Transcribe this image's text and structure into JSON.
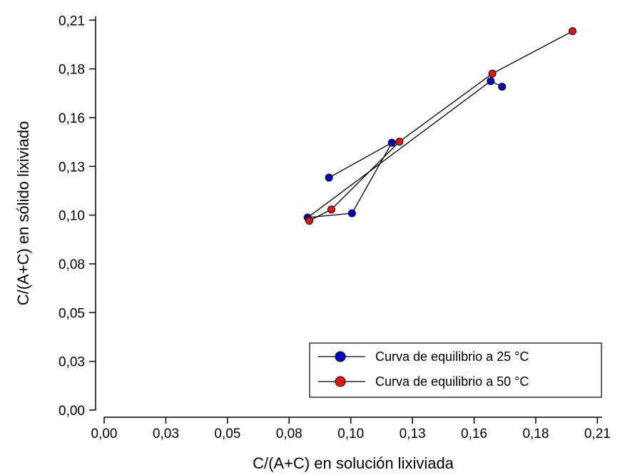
{
  "chart_data": {
    "type": "line",
    "xlabel": "C/(A+C) en solución lixiviada",
    "ylabel": "C/(A+C) en sólido lixiviado",
    "xlim": [
      0,
      0.21
    ],
    "ylim": [
      0,
      0.21
    ],
    "x_ticks": [
      0.0,
      0.026,
      0.052,
      0.078,
      0.104,
      0.13,
      0.156,
      0.182,
      0.208
    ],
    "x_tick_labels": [
      "0,00",
      "0,03",
      "0,05",
      "0,08",
      "0,10",
      "0,13",
      "0,16",
      "0,18",
      "0,21"
    ],
    "y_ticks": [
      0.0,
      0.026,
      0.052,
      0.078,
      0.104,
      0.13,
      0.156,
      0.182,
      0.208
    ],
    "y_tick_labels": [
      "0,00",
      "0,03",
      "0,05",
      "0,08",
      "0,10",
      "0,13",
      "0,16",
      "0,18",
      "0,21"
    ],
    "legend_position": "bottom-right",
    "series": [
      {
        "name": "Curva de equilibrio a 25 °C",
        "color": "#0000cc",
        "points": [
          [
            0.0948,
            0.124
          ],
          [
            0.1213,
            0.1426
          ],
          [
            0.1045,
            0.105
          ],
          [
            0.0858,
            0.1027
          ],
          [
            0.163,
            0.1755
          ],
          [
            0.1678,
            0.1725
          ]
        ]
      },
      {
        "name": "Curva de equilibrio a 50 °C",
        "color": "#ee1111",
        "points": [
          [
            0.0865,
            0.101
          ],
          [
            0.0958,
            0.107
          ],
          [
            0.1245,
            0.1432
          ],
          [
            0.1637,
            0.1795
          ],
          [
            0.1975,
            0.2021
          ]
        ]
      }
    ]
  }
}
